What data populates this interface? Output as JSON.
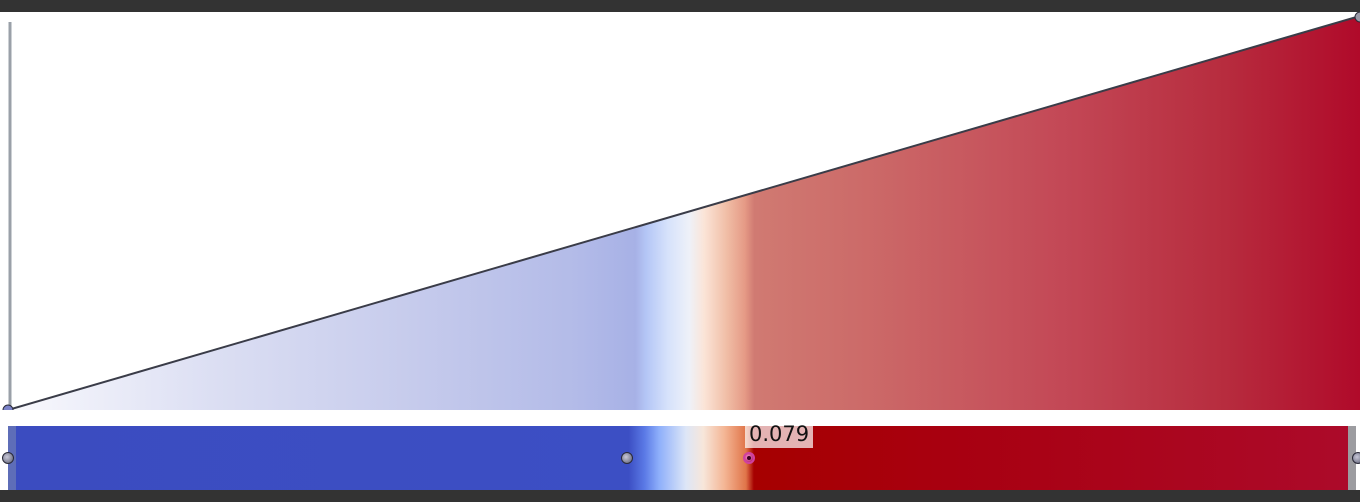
{
  "editor": {
    "name": "color-map-editor",
    "selected_point": {
      "value_label": "0.079"
    },
    "control_points": [
      {
        "name": "opacity-point-start"
      },
      {
        "name": "opacity-point-end"
      },
      {
        "name": "color-point-min"
      },
      {
        "name": "color-point-mid"
      },
      {
        "name": "color-point-selected"
      },
      {
        "name": "color-point-max"
      }
    ],
    "colors": {
      "cool": "#3b4cc0",
      "neutral": "#dde6f7",
      "warm": "#b40426",
      "selected_point": "#d040a0"
    }
  }
}
